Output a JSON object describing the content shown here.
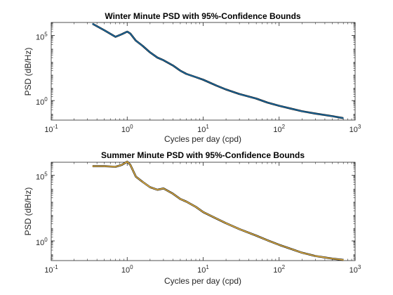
{
  "colors": {
    "axis": "#262626",
    "winter_line": "#1f77b4",
    "winter_bounds": "#000000",
    "summer_line": "#f5c04a",
    "summer_bounds": "#000000"
  },
  "chart_data": [
    {
      "type": "line",
      "title": "Winter Minute PSD with 95%-Confidence Bounds",
      "xlabel": "Cycles per day (cpd)",
      "ylabel": "PSD (dB/Hz)",
      "xscale": "log",
      "yscale": "log",
      "xlim": [
        0.1,
        1000
      ],
      "ylim_log10": [
        -1.5,
        6.0
      ],
      "x_ticks": [
        {
          "value": 0.1,
          "base": "10",
          "exp": "-1"
        },
        {
          "value": 1,
          "base": "10",
          "exp": "0"
        },
        {
          "value": 10,
          "base": "10",
          "exp": "1"
        },
        {
          "value": 100,
          "base": "10",
          "exp": "2"
        },
        {
          "value": 1000,
          "base": "10",
          "exp": "3"
        }
      ],
      "y_ticks": [
        {
          "value": 1,
          "base": "10",
          "exp": "0"
        },
        {
          "value": 100000,
          "base": "10",
          "exp": "5"
        }
      ],
      "grid": false,
      "series": [
        {
          "x": [
            0.35,
            0.5,
            0.7,
            0.85,
            1.0,
            1.1,
            1.3,
            1.6,
            2.0,
            2.5,
            3.0,
            4.0,
            5.0,
            6.0,
            8.0,
            10,
            15,
            20,
            30,
            50,
            70,
            100,
            150,
            200,
            300,
            500,
            700
          ],
          "y_log10": [
            5.9,
            5.4,
            4.9,
            5.1,
            5.3,
            5.15,
            4.6,
            4.2,
            3.7,
            3.3,
            3.1,
            2.7,
            2.3,
            2.05,
            1.8,
            1.6,
            1.15,
            0.85,
            0.5,
            0.15,
            -0.15,
            -0.4,
            -0.65,
            -0.82,
            -1.0,
            -1.2,
            -1.35
          ]
        }
      ]
    },
    {
      "type": "line",
      "title": "Summer Minute PSD with 95%-Confidence Bounds",
      "xlabel": "Cycles per day (cpd)",
      "ylabel": "PSD (dB/Hz)",
      "xscale": "log",
      "yscale": "log",
      "xlim": [
        0.1,
        1000
      ],
      "ylim_log10": [
        -1.5,
        6.0
      ],
      "x_ticks": [
        {
          "value": 0.1,
          "base": "10",
          "exp": "-1"
        },
        {
          "value": 1,
          "base": "10",
          "exp": "0"
        },
        {
          "value": 10,
          "base": "10",
          "exp": "1"
        },
        {
          "value": 100,
          "base": "10",
          "exp": "2"
        },
        {
          "value": 1000,
          "base": "10",
          "exp": "3"
        }
      ],
      "y_ticks": [
        {
          "value": 1,
          "base": "10",
          "exp": "0"
        },
        {
          "value": 100000,
          "base": "10",
          "exp": "5"
        }
      ],
      "grid": false,
      "series": [
        {
          "x": [
            0.35,
            0.5,
            0.7,
            0.85,
            1.0,
            1.1,
            1.3,
            1.6,
            2.0,
            2.5,
            3.0,
            4.0,
            5.0,
            6.0,
            8.0,
            10,
            15,
            20,
            30,
            50,
            70,
            100,
            150,
            200,
            300,
            500,
            700
          ],
          "y_log10": [
            5.7,
            5.7,
            5.65,
            5.8,
            6.05,
            5.8,
            4.9,
            4.5,
            4.1,
            3.9,
            4.0,
            3.6,
            3.2,
            3.0,
            2.6,
            2.2,
            1.7,
            1.35,
            0.9,
            0.4,
            0.05,
            -0.3,
            -0.65,
            -0.9,
            -1.15,
            -1.35,
            -1.45
          ]
        }
      ]
    }
  ]
}
